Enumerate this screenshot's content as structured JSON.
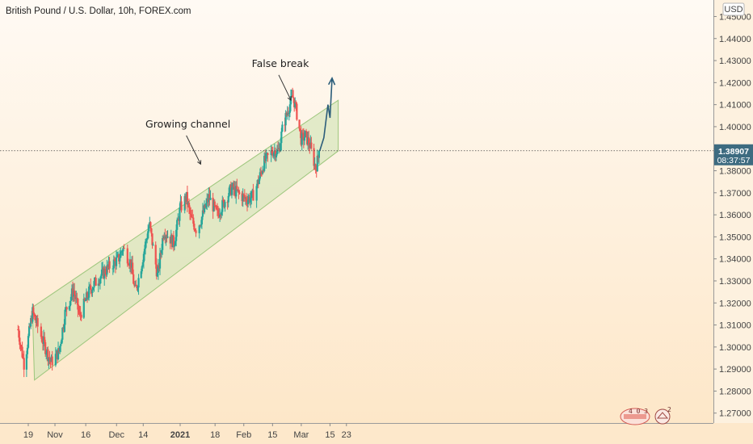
{
  "chart_data": {
    "type": "candlestick",
    "title": "British Pound / U.S. Dollar, 10h, FOREX.com",
    "currency": "USD",
    "y_ticks": [
      "1.27000",
      "1.28000",
      "1.29000",
      "1.30000",
      "1.31000",
      "1.32000",
      "1.33000",
      "1.34000",
      "1.35000",
      "1.36000",
      "1.37000",
      "1.38000",
      "1.39000",
      "1.40000",
      "1.41000",
      "1.42000",
      "1.43000",
      "1.44000",
      "1.45000"
    ],
    "ylim": [
      1.2655,
      1.4575
    ],
    "x_ticks": [
      {
        "label": "19",
        "date": "2020-10-19",
        "bold": false
      },
      {
        "label": "Nov",
        "date": "2020-11-01",
        "bold": false
      },
      {
        "label": "16",
        "date": "2020-11-16",
        "bold": false
      },
      {
        "label": "Dec",
        "date": "2020-12-01",
        "bold": false
      },
      {
        "label": "14",
        "date": "2020-12-14",
        "bold": false
      },
      {
        "label": "2021",
        "date": "2021-01-01",
        "bold": true
      },
      {
        "label": "18",
        "date": "2021-01-18",
        "bold": false
      },
      {
        "label": "Feb",
        "date": "2021-02-01",
        "bold": false
      },
      {
        "label": "15",
        "date": "2021-02-15",
        "bold": false
      },
      {
        "label": "Mar",
        "date": "2021-03-01",
        "bold": false
      },
      {
        "label": "15",
        "date": "2021-03-15",
        "bold": false
      },
      {
        "label": "23",
        "date": "2021-03-23",
        "bold": false
      }
    ],
    "last_price": {
      "value": 1.38907,
      "price_label": "1.38907",
      "countdown": "08:37:57"
    },
    "price_path": [
      [
        "2020-10-14",
        1.308
      ],
      [
        "2020-10-17",
        1.292
      ],
      [
        "2020-10-21",
        1.316
      ],
      [
        "2020-10-26",
        1.303
      ],
      [
        "2020-10-30",
        1.293
      ],
      [
        "2020-11-03",
        1.298
      ],
      [
        "2020-11-06",
        1.316
      ],
      [
        "2020-11-10",
        1.326
      ],
      [
        "2020-11-13",
        1.314
      ],
      [
        "2020-11-18",
        1.326
      ],
      [
        "2020-11-23",
        1.332
      ],
      [
        "2020-11-28",
        1.337
      ],
      [
        "2020-12-02",
        1.34
      ],
      [
        "2020-12-04",
        1.345
      ],
      [
        "2020-12-08",
        1.338
      ],
      [
        "2020-12-10",
        1.325
      ],
      [
        "2020-12-12",
        1.332
      ],
      [
        "2020-12-17",
        1.356
      ],
      [
        "2020-12-21",
        1.332
      ],
      [
        "2020-12-24",
        1.353
      ],
      [
        "2020-12-29",
        1.347
      ],
      [
        "2021-01-01",
        1.363
      ],
      [
        "2021-01-04",
        1.368
      ],
      [
        "2021-01-06",
        1.359
      ],
      [
        "2021-01-09",
        1.353
      ],
      [
        "2021-01-12",
        1.36
      ],
      [
        "2021-01-15",
        1.368
      ],
      [
        "2021-01-19",
        1.36
      ],
      [
        "2021-01-22",
        1.365
      ],
      [
        "2021-01-26",
        1.372
      ],
      [
        "2021-01-29",
        1.37
      ],
      [
        "2021-02-02",
        1.367
      ],
      [
        "2021-02-05",
        1.368
      ],
      [
        "2021-02-08",
        1.375
      ],
      [
        "2021-02-11",
        1.384
      ],
      [
        "2021-02-15",
        1.389
      ],
      [
        "2021-02-18",
        1.389
      ],
      [
        "2021-02-20",
        1.4
      ],
      [
        "2021-02-23",
        1.409
      ],
      [
        "2021-02-25",
        1.414
      ],
      [
        "2021-02-27",
        1.405
      ],
      [
        "2021-03-01",
        1.394
      ],
      [
        "2021-03-03",
        1.396
      ],
      [
        "2021-03-05",
        1.392
      ],
      [
        "2021-03-07",
        1.385
      ],
      [
        "2021-03-08",
        1.381
      ],
      [
        "2021-03-10",
        1.38907
      ]
    ],
    "channel": {
      "upper": [
        [
          "2020-10-21",
          1.318
        ],
        [
          "2021-03-19",
          1.389
        ]
      ],
      "lower": [
        [
          "2020-10-22",
          1.285
        ],
        [
          "2021-03-19",
          1.412
        ]
      ]
    },
    "projection_path": [
      [
        "2021-03-10",
        1.38907
      ],
      [
        "2021-03-12",
        1.395
      ],
      [
        "2021-03-14",
        1.41
      ],
      [
        "2021-03-15",
        1.404
      ],
      [
        "2021-03-16",
        1.422
      ]
    ],
    "annotations": [
      {
        "text": "Growing channel",
        "arrow_from": [
          "2021-01-04",
          1.396
        ],
        "arrow_to": [
          "2021-01-11",
          1.383
        ]
      },
      {
        "text": "False break",
        "arrow_from": [
          "2021-02-18",
          1.4235
        ],
        "arrow_to": [
          "2021-02-24",
          1.412
        ]
      }
    ],
    "colors": {
      "up": "#26a69a",
      "down": "#ef5350",
      "channel_fill": "#cfe3b4",
      "channel_stroke": "#9dc67c",
      "projection": "#2b5d7a",
      "price_tag": "#3d6b80",
      "background_top": "#fffaf4",
      "background_bottom": "#fde6c6"
    },
    "grid": false,
    "logo": {
      "left_digits": "4 0 3",
      "right_digit": "2"
    }
  }
}
